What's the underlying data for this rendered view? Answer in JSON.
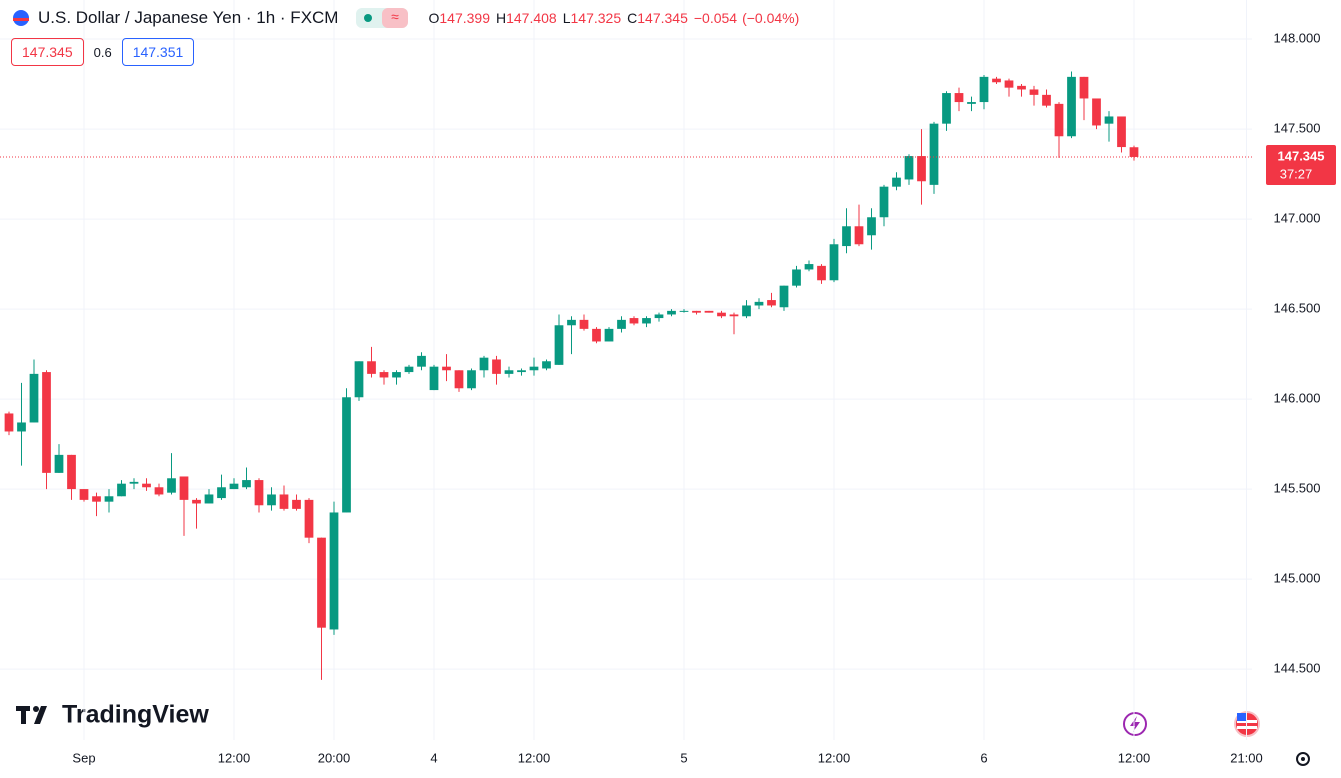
{
  "header": {
    "title": "U.S. Dollar / Japanese Yen · 1h · FXCM",
    "ohlc": [
      {
        "label": "O",
        "value": 147.399
      },
      {
        "label": "H",
        "value": 147.408
      },
      {
        "label": "L",
        "value": 147.325
      },
      {
        "label": "C",
        "value": 147.345
      }
    ],
    "change": {
      "value": -0.054,
      "label": "−0.054"
    },
    "change_percent": {
      "value": -0.04,
      "label": "(−0.04%)"
    }
  },
  "trade": {
    "sell": 147.345,
    "spread": 0.6,
    "buy": 147.351
  },
  "logo": "TradingView",
  "chart_data": {
    "type": "candlestick",
    "x": [
      0,
      1,
      2,
      3,
      4,
      5,
      6,
      7,
      8,
      9,
      10,
      11,
      12,
      13,
      14,
      15,
      16,
      17,
      18,
      19,
      20,
      21,
      22,
      23,
      24,
      25,
      26,
      27,
      28,
      29,
      30,
      31,
      32,
      33,
      34,
      35,
      36,
      37,
      38,
      39,
      40,
      41,
      42,
      43,
      44,
      45,
      46,
      47,
      48,
      49,
      50,
      51,
      52,
      53,
      54,
      55,
      56,
      57,
      58,
      59,
      60,
      61,
      62,
      63,
      64,
      65,
      66,
      67,
      68,
      69,
      70,
      71,
      72,
      73,
      74,
      75,
      76,
      77,
      78,
      79,
      80,
      81,
      82,
      83,
      84,
      85,
      86,
      87,
      88,
      89,
      90
    ],
    "open": [
      145.92,
      145.82,
      145.87,
      146.15,
      145.59,
      145.69,
      145.5,
      145.46,
      145.43,
      145.46,
      145.53,
      145.53,
      145.51,
      145.48,
      145.57,
      145.44,
      145.42,
      145.45,
      145.5,
      145.51,
      145.55,
      145.41,
      145.47,
      145.44,
      145.44,
      145.23,
      144.72,
      145.37,
      146.01,
      146.21,
      146.15,
      146.12,
      146.15,
      146.18,
      146.05,
      146.18,
      146.16,
      146.06,
      146.16,
      146.22,
      146.14,
      146.15,
      146.16,
      146.17,
      146.19,
      146.41,
      146.44,
      146.39,
      146.32,
      146.39,
      146.45,
      146.42,
      146.45,
      146.47,
      146.49,
      146.49,
      146.49,
      146.48,
      146.47,
      146.46,
      146.52,
      146.55,
      146.51,
      146.63,
      146.72,
      146.74,
      146.66,
      146.85,
      146.96,
      146.91,
      147.01,
      147.18,
      147.22,
      147.35,
      147.19,
      147.53,
      147.7,
      147.64,
      147.65,
      147.78,
      147.77,
      147.74,
      147.72,
      147.69,
      147.64,
      147.46,
      147.79,
      147.67,
      147.53,
      147.57,
      147.399
    ],
    "high": [
      145.93,
      146.09,
      146.22,
      146.16,
      145.75,
      145.69,
      145.5,
      145.48,
      145.5,
      145.55,
      145.56,
      145.56,
      145.53,
      145.7,
      145.57,
      145.45,
      145.5,
      145.58,
      145.56,
      145.62,
      145.56,
      145.51,
      145.52,
      145.47,
      145.45,
      145.23,
      145.43,
      146.06,
      146.21,
      146.29,
      146.16,
      146.16,
      146.19,
      146.26,
      146.19,
      146.25,
      146.16,
      146.17,
      146.24,
      146.24,
      146.18,
      146.17,
      146.23,
      146.22,
      146.47,
      146.46,
      146.47,
      146.4,
      146.4,
      146.46,
      146.46,
      146.46,
      146.48,
      146.5,
      146.5,
      146.49,
      146.49,
      146.49,
      146.48,
      146.55,
      146.56,
      146.59,
      146.63,
      146.74,
      146.77,
      146.75,
      146.89,
      147.06,
      147.08,
      147.06,
      147.19,
      147.26,
      147.36,
      147.5,
      147.54,
      147.71,
      147.73,
      147.68,
      147.8,
      147.79,
      147.78,
      147.75,
      147.74,
      147.72,
      147.65,
      147.82,
      147.79,
      147.67,
      147.6,
      147.57,
      147.408
    ],
    "low": [
      145.8,
      145.63,
      145.87,
      145.5,
      145.59,
      145.44,
      145.43,
      145.35,
      145.37,
      145.46,
      145.5,
      145.49,
      145.46,
      145.47,
      145.24,
      145.28,
      145.42,
      145.44,
      145.5,
      145.5,
      145.37,
      145.38,
      145.38,
      145.38,
      145.2,
      144.44,
      144.69,
      145.37,
      145.99,
      146.12,
      146.08,
      146.08,
      146.14,
      146.16,
      146.05,
      146.1,
      146.04,
      146.05,
      146.12,
      146.08,
      146.12,
      146.13,
      146.13,
      146.16,
      146.19,
      146.25,
      146.38,
      146.31,
      146.32,
      146.37,
      146.41,
      146.4,
      146.43,
      146.46,
      146.48,
      146.47,
      146.48,
      146.45,
      146.36,
      146.45,
      146.5,
      146.51,
      146.49,
      146.62,
      146.71,
      146.64,
      146.65,
      146.81,
      146.85,
      146.83,
      146.96,
      147.16,
      147.19,
      147.08,
      147.14,
      147.49,
      147.6,
      147.6,
      147.61,
      147.75,
      147.68,
      147.68,
      147.63,
      147.62,
      147.34,
      147.45,
      147.55,
      147.5,
      147.43,
      147.37,
      147.325
    ],
    "close": [
      145.82,
      145.87,
      146.14,
      145.59,
      145.69,
      145.5,
      145.44,
      145.43,
      145.46,
      145.53,
      145.54,
      145.51,
      145.47,
      145.56,
      145.44,
      145.42,
      145.47,
      145.51,
      145.53,
      145.55,
      145.41,
      145.47,
      145.39,
      145.39,
      145.23,
      144.73,
      145.37,
      146.01,
      146.21,
      146.14,
      146.12,
      146.15,
      146.18,
      146.24,
      146.18,
      146.16,
      146.06,
      146.16,
      146.23,
      146.14,
      146.16,
      146.16,
      146.18,
      146.21,
      146.41,
      146.44,
      146.39,
      146.32,
      146.39,
      146.44,
      146.42,
      146.45,
      146.47,
      146.49,
      146.49,
      146.48,
      146.48,
      146.46,
      146.46,
      146.52,
      146.54,
      146.52,
      146.63,
      146.72,
      146.75,
      146.66,
      146.86,
      146.96,
      146.86,
      147.01,
      147.18,
      147.23,
      147.35,
      147.21,
      147.53,
      147.7,
      147.65,
      147.65,
      147.79,
      147.76,
      147.73,
      147.72,
      147.69,
      147.63,
      147.46,
      147.79,
      147.67,
      147.52,
      147.57,
      147.4,
      147.345
    ],
    "up_color": "#089981",
    "down_color": "#f23645",
    "xlim": [
      -0.72,
      99.44
    ],
    "ylim": [
      144.106,
      148.217
    ],
    "xticks": [
      {
        "value": 6,
        "label": "Sep"
      },
      {
        "value": 18,
        "label": "12:00"
      },
      {
        "value": 26,
        "label": "20:00"
      },
      {
        "value": 34,
        "label": "4"
      },
      {
        "value": 42,
        "label": "12:00"
      },
      {
        "value": 54,
        "label": "5"
      },
      {
        "value": 66,
        "label": "12:00"
      },
      {
        "value": 78,
        "label": "6"
      },
      {
        "value": 90,
        "label": "12:00"
      },
      {
        "value": 99,
        "label": "21:00"
      }
    ],
    "yticks": [
      {
        "value": 144.5,
        "label": "144.500"
      },
      {
        "value": 145,
        "label": "145.000"
      },
      {
        "value": 145.5,
        "label": "145.500"
      },
      {
        "value": 146,
        "label": "146.000"
      },
      {
        "value": 146.5,
        "label": "146.500"
      },
      {
        "value": 147,
        "label": "147.000"
      },
      {
        "value": 147.5,
        "label": "147.500"
      },
      {
        "value": 148,
        "label": "148.000"
      }
    ],
    "grid": true,
    "countdown": "37:27"
  }
}
